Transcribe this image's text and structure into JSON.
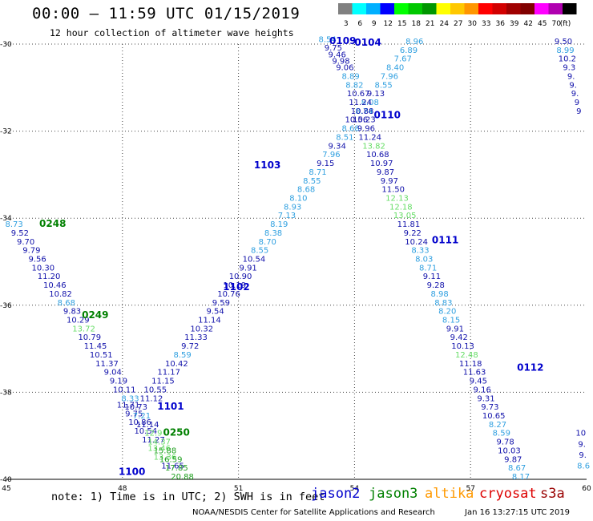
{
  "header": {
    "title": "00:00 – 11:59 UTC 01/15/2019",
    "subtitle": "12 hour collection of altimeter wave heights"
  },
  "legend": {
    "unit": "(ft)",
    "bins": [
      {
        "label": "3",
        "color": "#808080"
      },
      {
        "label": "6",
        "color": "#00ffff"
      },
      {
        "label": "9",
        "color": "#00b0ff"
      },
      {
        "label": "12",
        "color": "#0000ff"
      },
      {
        "label": "15",
        "color": "#00ff00"
      },
      {
        "label": "18",
        "color": "#00c800"
      },
      {
        "label": "21",
        "color": "#009600"
      },
      {
        "label": "24",
        "color": "#ffff00"
      },
      {
        "label": "27",
        "color": "#ffc800"
      },
      {
        "label": "30",
        "color": "#ff9600"
      },
      {
        "label": "33",
        "color": "#ff0000"
      },
      {
        "label": "36",
        "color": "#d20000"
      },
      {
        "label": "39",
        "color": "#a00000"
      },
      {
        "label": "42",
        "color": "#800000"
      },
      {
        "label": "45",
        "color": "#ff00ff"
      },
      {
        "label": "70",
        "color": "#b000b0"
      },
      {
        "label": "",
        "color": "#000000"
      }
    ]
  },
  "axes": {
    "lon_ticks": [
      45,
      48,
      51,
      54,
      57,
      60
    ],
    "lat_ticks": [
      -30,
      -32,
      -34,
      -36,
      -38,
      -40
    ],
    "lon_range": [
      45,
      60
    ],
    "lat_range": [
      -40,
      -30
    ]
  },
  "pass_labels": [
    {
      "text": "0109",
      "lon": 53.35,
      "lat": -30.0,
      "color": "#0000cc"
    },
    {
      "text": "0104",
      "lon": 54.0,
      "lat": -30.04,
      "color": "#0000cc"
    },
    {
      "text": "0110",
      "lon": 54.5,
      "lat": -31.7,
      "color": "#0000cc"
    },
    {
      "text": "1103",
      "lon": 51.4,
      "lat": -32.85,
      "color": "#0000cc"
    },
    {
      "text": "0248",
      "lon": 45.85,
      "lat": -34.2,
      "color": "#008000"
    },
    {
      "text": "0111",
      "lon": 56.0,
      "lat": -34.58,
      "color": "#0000cc"
    },
    {
      "text": "1102",
      "lon": 50.6,
      "lat": -35.65,
      "color": "#0000cc"
    },
    {
      "text": "0249",
      "lon": 46.95,
      "lat": -36.3,
      "color": "#008000"
    },
    {
      "text": "0112",
      "lon": 58.2,
      "lat": -37.5,
      "color": "#0000cc"
    },
    {
      "text": "1101",
      "lon": 48.9,
      "lat": -38.4,
      "color": "#0000cc"
    },
    {
      "text": "0250",
      "lon": 49.05,
      "lat": -39.0,
      "color": "#008000"
    },
    {
      "text": "1100",
      "lon": 47.9,
      "lat": -39.9,
      "color": "#0000cc"
    }
  ],
  "tracks": [
    {
      "name": "jason2-ascending-1100",
      "color_a": "#1010aa",
      "color_b": "#30a0e0",
      "points": [
        {
          "lon": 49.3,
          "lat": -39.75,
          "v": "11.65"
        },
        {
          "lon": 49.1,
          "lat": -39.55,
          "v": "13.36"
        },
        {
          "lon": 48.95,
          "lat": -39.35,
          "v": "13.46"
        },
        {
          "lon": 48.8,
          "lat": -39.15,
          "v": "11.27"
        },
        {
          "lon": 48.6,
          "lat": -38.95,
          "v": "10.54"
        },
        {
          "lon": 48.45,
          "lat": -38.75,
          "v": "10.86"
        },
        {
          "lon": 48.3,
          "lat": -38.55,
          "v": "9.75"
        },
        {
          "lon": 48.15,
          "lat": -38.35,
          "v": "11.71"
        },
        {
          "lon": 48.75,
          "lat": -38.2,
          "v": "11.12"
        },
        {
          "lon": 48.85,
          "lat": -38.0,
          "v": "10.55"
        },
        {
          "lon": 49.05,
          "lat": -37.8,
          "v": "11.15"
        },
        {
          "lon": 49.2,
          "lat": -37.6,
          "v": "11.17"
        },
        {
          "lon": 49.4,
          "lat": -37.4,
          "v": "10.42"
        },
        {
          "lon": 49.55,
          "lat": -37.2,
          "v": "8.59"
        },
        {
          "lon": 49.75,
          "lat": -37.0,
          "v": "9.72"
        },
        {
          "lon": 49.9,
          "lat": -36.8,
          "v": "11.33"
        },
        {
          "lon": 50.05,
          "lat": -36.6,
          "v": "10.32"
        },
        {
          "lon": 50.25,
          "lat": -36.4,
          "v": "11.14"
        },
        {
          "lon": 50.4,
          "lat": -36.2,
          "v": "9.54"
        },
        {
          "lon": 50.55,
          "lat": -36.0,
          "v": "9.59"
        },
        {
          "lon": 50.75,
          "lat": -35.8,
          "v": "10.76"
        },
        {
          "lon": 50.9,
          "lat": -35.6,
          "v": "10.19"
        },
        {
          "lon": 51.05,
          "lat": -35.4,
          "v": "10.90"
        },
        {
          "lon": 51.25,
          "lat": -35.2,
          "v": "9.91"
        },
        {
          "lon": 51.4,
          "lat": -35.0,
          "v": "10.54"
        },
        {
          "lon": 51.55,
          "lat": -34.8,
          "v": "8.55"
        },
        {
          "lon": 51.75,
          "lat": -34.6,
          "v": "8.70"
        },
        {
          "lon": 51.9,
          "lat": -34.4,
          "v": "8.38"
        },
        {
          "lon": 52.05,
          "lat": -34.2,
          "v": "8.19"
        },
        {
          "lon": 52.25,
          "lat": -34.0,
          "v": "7.13"
        },
        {
          "lon": 52.4,
          "lat": -33.8,
          "v": "8.93"
        },
        {
          "lon": 52.55,
          "lat": -33.6,
          "v": "8.10"
        },
        {
          "lon": 52.75,
          "lat": -33.4,
          "v": "8.68"
        },
        {
          "lon": 52.9,
          "lat": -33.2,
          "v": "8.55"
        },
        {
          "lon": 53.05,
          "lat": -33.0,
          "v": "8.71"
        },
        {
          "lon": 53.25,
          "lat": -32.8,
          "v": "9.15"
        },
        {
          "lon": 53.4,
          "lat": -32.6,
          "v": "7.96"
        },
        {
          "lon": 53.55,
          "lat": -32.4,
          "v": "9.34"
        },
        {
          "lon": 53.75,
          "lat": -32.2,
          "v": "8.51"
        },
        {
          "lon": 53.9,
          "lat": -32.0,
          "v": "8.68"
        },
        {
          "lon": 54.05,
          "lat": -31.8,
          "v": "10.56"
        },
        {
          "lon": 54.25,
          "lat": -31.6,
          "v": "8.74"
        },
        {
          "lon": 54.4,
          "lat": -31.4,
          "v": "8.08"
        },
        {
          "lon": 54.55,
          "lat": -31.2,
          "v": "9.13"
        },
        {
          "lon": 54.75,
          "lat": -31.0,
          "v": "8.55"
        },
        {
          "lon": 54.9,
          "lat": -30.8,
          "v": "7.96"
        },
        {
          "lon": 55.05,
          "lat": -30.6,
          "v": "8.40"
        },
        {
          "lon": 55.25,
          "lat": -30.4,
          "v": "7.67"
        },
        {
          "lon": 55.4,
          "lat": -30.2,
          "v": "6.89"
        },
        {
          "lon": 55.55,
          "lat": -30.0,
          "v": "8.96"
        }
      ]
    },
    {
      "name": "jason2-descending-0110",
      "color_a": "#1010aa",
      "color_b": "#30a0e0",
      "points": [
        {
          "lon": 53.3,
          "lat": -29.95,
          "v": "8.54"
        },
        {
          "lon": 53.45,
          "lat": -30.15,
          "v": "9.75"
        },
        {
          "lon": 53.55,
          "lat": -30.3,
          "v": "9.46"
        },
        {
          "lon": 53.65,
          "lat": -30.45,
          "v": "9.98"
        },
        {
          "lon": 53.75,
          "lat": -30.6,
          "v": "9.06"
        },
        {
          "lon": 53.9,
          "lat": -30.8,
          "v": "8.89"
        },
        {
          "lon": 54.0,
          "lat": -31.0,
          "v": "8.82"
        },
        {
          "lon": 54.1,
          "lat": -31.2,
          "v": "10.67"
        },
        {
          "lon": 54.15,
          "lat": -31.4,
          "v": "11.24"
        },
        {
          "lon": 54.2,
          "lat": -31.6,
          "v": "10.88"
        },
        {
          "lon": 54.25,
          "lat": -31.8,
          "v": "10.23"
        },
        {
          "lon": 54.3,
          "lat": -32.0,
          "v": "9.96"
        },
        {
          "lon": 54.4,
          "lat": -32.2,
          "v": "11.24"
        },
        {
          "lon": 54.5,
          "lat": -32.4,
          "v": "13.82"
        },
        {
          "lon": 54.6,
          "lat": -32.6,
          "v": "10.68"
        },
        {
          "lon": 54.7,
          "lat": -32.8,
          "v": "10.97"
        },
        {
          "lon": 54.8,
          "lat": -33.0,
          "v": "9.87"
        },
        {
          "lon": 54.9,
          "lat": -33.2,
          "v": "9.97"
        },
        {
          "lon": 55.0,
          "lat": -33.4,
          "v": "11.50"
        },
        {
          "lon": 55.1,
          "lat": -33.6,
          "v": "12.13"
        },
        {
          "lon": 55.2,
          "lat": -33.8,
          "v": "12.18"
        },
        {
          "lon": 55.3,
          "lat": -34.0,
          "v": "13.05"
        },
        {
          "lon": 55.4,
          "lat": -34.2,
          "v": "11.81"
        },
        {
          "lon": 55.5,
          "lat": -34.4,
          "v": "9.22"
        },
        {
          "lon": 55.6,
          "lat": -34.6,
          "v": "10.24"
        },
        {
          "lon": 55.7,
          "lat": -34.8,
          "v": "8.33"
        },
        {
          "lon": 55.8,
          "lat": -35.0,
          "v": "8.03"
        },
        {
          "lon": 55.9,
          "lat": -35.2,
          "v": "8.71"
        },
        {
          "lon": 56.0,
          "lat": -35.4,
          "v": "9.11"
        },
        {
          "lon": 56.1,
          "lat": -35.6,
          "v": "9.28"
        },
        {
          "lon": 56.2,
          "lat": -35.8,
          "v": "8.98"
        },
        {
          "lon": 56.3,
          "lat": -36.0,
          "v": "8.83"
        },
        {
          "lon": 56.4,
          "lat": -36.2,
          "v": "8.20"
        },
        {
          "lon": 56.5,
          "lat": -36.4,
          "v": "8.15"
        },
        {
          "lon": 56.6,
          "lat": -36.6,
          "v": "9.91"
        },
        {
          "lon": 56.7,
          "lat": -36.8,
          "v": "9.42"
        },
        {
          "lon": 56.8,
          "lat": -37.0,
          "v": "10.13"
        },
        {
          "lon": 56.9,
          "lat": -37.2,
          "v": "12.48"
        },
        {
          "lon": 57.0,
          "lat": -37.4,
          "v": "11.18"
        },
        {
          "lon": 57.1,
          "lat": -37.6,
          "v": "11.63"
        },
        {
          "lon": 57.2,
          "lat": -37.8,
          "v": "9.45"
        },
        {
          "lon": 57.3,
          "lat": -38.0,
          "v": "9.16"
        },
        {
          "lon": 57.4,
          "lat": -38.2,
          "v": "9.31"
        },
        {
          "lon": 57.5,
          "lat": -38.4,
          "v": "9.73"
        },
        {
          "lon": 57.6,
          "lat": -38.6,
          "v": "10.65"
        },
        {
          "lon": 57.7,
          "lat": -38.8,
          "v": "8.27"
        },
        {
          "lon": 57.8,
          "lat": -39.0,
          "v": "8.59"
        },
        {
          "lon": 57.9,
          "lat": -39.2,
          "v": "9.78"
        },
        {
          "lon": 58.0,
          "lat": -39.4,
          "v": "10.03"
        },
        {
          "lon": 58.1,
          "lat": -39.6,
          "v": "9.87"
        },
        {
          "lon": 58.2,
          "lat": -39.8,
          "v": "8.67"
        },
        {
          "lon": 58.3,
          "lat": -40.0,
          "v": "8.17"
        }
      ]
    },
    {
      "name": "jason3-descending-0248",
      "color_a": "#1010aa",
      "color_b": "#30a0e0",
      "points": [
        {
          "lon": 45.2,
          "lat": -34.2,
          "v": "8.73"
        },
        {
          "lon": 45.35,
          "lat": -34.4,
          "v": "9.52"
        },
        {
          "lon": 45.5,
          "lat": -34.6,
          "v": "9.70"
        },
        {
          "lon": 45.65,
          "lat": -34.8,
          "v": "9.79"
        },
        {
          "lon": 45.8,
          "lat": -35.0,
          "v": "9.56"
        },
        {
          "lon": 45.95,
          "lat": -35.2,
          "v": "10.30"
        },
        {
          "lon": 46.1,
          "lat": -35.4,
          "v": "11.20"
        },
        {
          "lon": 46.25,
          "lat": -35.6,
          "v": "10.46"
        },
        {
          "lon": 46.4,
          "lat": -35.8,
          "v": "10.82"
        },
        {
          "lon": 46.55,
          "lat": -36.0,
          "v": "8.68"
        },
        {
          "lon": 46.7,
          "lat": -36.2,
          "v": "9.83"
        },
        {
          "lon": 46.85,
          "lat": -36.4,
          "v": "10.29"
        },
        {
          "lon": 47.0,
          "lat": -36.6,
          "v": "13.72"
        },
        {
          "lon": 47.15,
          "lat": -36.8,
          "v": "10.79"
        },
        {
          "lon": 47.3,
          "lat": -37.0,
          "v": "11.45"
        },
        {
          "lon": 47.45,
          "lat": -37.2,
          "v": "10.51"
        },
        {
          "lon": 47.6,
          "lat": -37.4,
          "v": "11.37"
        },
        {
          "lon": 47.75,
          "lat": -37.6,
          "v": "9.04"
        },
        {
          "lon": 47.9,
          "lat": -37.8,
          "v": "9.19"
        },
        {
          "lon": 48.05,
          "lat": -38.0,
          "v": "10.11"
        },
        {
          "lon": 48.2,
          "lat": -38.2,
          "v": "8.33"
        },
        {
          "lon": 48.35,
          "lat": -38.4,
          "v": "10.73"
        },
        {
          "lon": 48.5,
          "lat": -38.6,
          "v": "7.21"
        },
        {
          "lon": 48.65,
          "lat": -38.8,
          "v": "11.14"
        },
        {
          "lon": 48.8,
          "lat": -39.0,
          "v": "12.9"
        },
        {
          "lon": 48.95,
          "lat": -39.2,
          "v": "14.37"
        },
        {
          "lon": 49.1,
          "lat": -39.4,
          "v": "15.88"
        },
        {
          "lon": 49.25,
          "lat": -39.6,
          "v": "16.59"
        },
        {
          "lon": 49.4,
          "lat": -39.8,
          "v": "17.85"
        },
        {
          "lon": 49.55,
          "lat": -40.0,
          "v": "20.88"
        }
      ]
    },
    {
      "name": "right-edge-track",
      "color_a": "#1010aa",
      "color_b": "#30a0e0",
      "points": [
        {
          "lon": 59.4,
          "lat": -30.0,
          "v": "9.50"
        },
        {
          "lon": 59.45,
          "lat": -30.2,
          "v": "8.99"
        },
        {
          "lon": 59.5,
          "lat": -30.4,
          "v": "10.2"
        },
        {
          "lon": 59.55,
          "lat": -30.6,
          "v": "9.3"
        },
        {
          "lon": 59.6,
          "lat": -30.8,
          "v": "9."
        },
        {
          "lon": 59.65,
          "lat": -31.0,
          "v": "9."
        },
        {
          "lon": 59.7,
          "lat": -31.2,
          "v": "9."
        },
        {
          "lon": 59.75,
          "lat": -31.4,
          "v": "9"
        },
        {
          "lon": 59.8,
          "lat": -31.6,
          "v": "9"
        },
        {
          "lon": 59.85,
          "lat": -39.0,
          "v": "10"
        },
        {
          "lon": 59.88,
          "lat": -39.25,
          "v": "9."
        },
        {
          "lon": 59.9,
          "lat": -39.5,
          "v": "9."
        },
        {
          "lon": 59.92,
          "lat": -39.75,
          "v": "8.6"
        }
      ]
    }
  ],
  "note": "note: 1) Time is in UTC; 2) SWH is in feet",
  "satellites": [
    {
      "name": "jason2",
      "color": "#0000cc"
    },
    {
      "name": "jason3",
      "color": "#008000"
    },
    {
      "name": "altika",
      "color": "#ff9900"
    },
    {
      "name": "cryosat",
      "color": "#dd0000"
    },
    {
      "name": "s3a",
      "color": "#990000"
    }
  ],
  "footer": "NOAA/NESDIS Center for Satellite Applications and Research",
  "timestamp": "Jan 16 13:27:15 UTC 2019"
}
